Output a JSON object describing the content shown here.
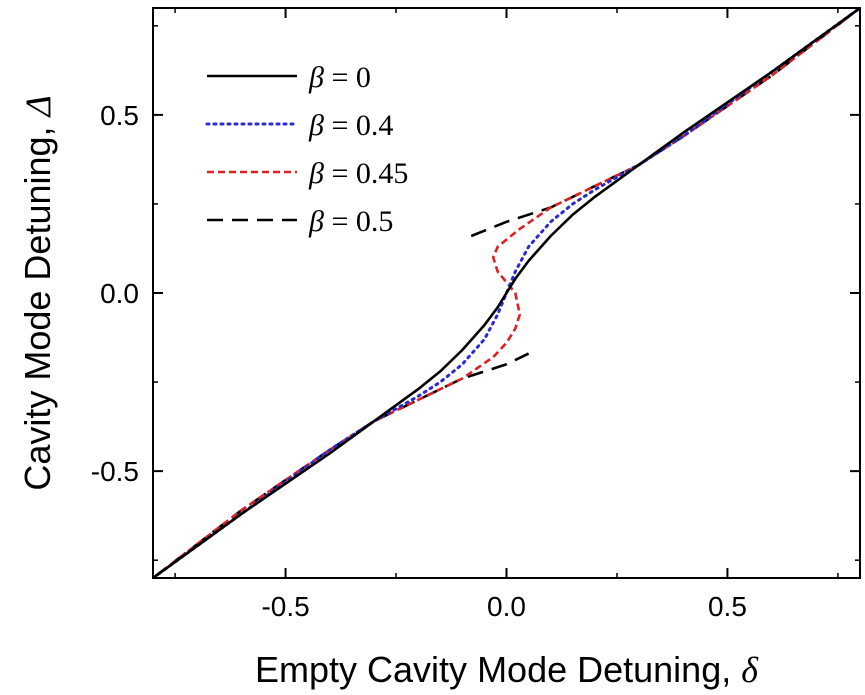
{
  "chart_data": {
    "type": "line",
    "xlabel": "Empty Cavity Mode Detuning, ",
    "xlabel_symbol": "δ",
    "ylabel": "Cavity Mode Detuning, ",
    "ylabel_symbol": "Δ",
    "xlim": [
      -0.8,
      0.8
    ],
    "ylim": [
      -0.8,
      0.8
    ],
    "xticks": [
      -0.5,
      0.0,
      0.5
    ],
    "yticks": [
      -0.5,
      0.0,
      0.5
    ],
    "xtick_labels": [
      "-0.5",
      "0.0",
      "0.5"
    ],
    "ytick_labels": [
      "-0.5",
      "0.0",
      "0.5"
    ],
    "grid": false,
    "legend_position": "top-left",
    "series": [
      {
        "name": "β = 0",
        "symbol": "β",
        "value_text": " = 0",
        "color": "#000000",
        "style": "solid",
        "x": [
          -0.8,
          -0.6,
          -0.4,
          -0.3,
          -0.2,
          -0.15,
          -0.1,
          -0.05,
          -0.02,
          0.0,
          0.02,
          0.05,
          0.1,
          0.15,
          0.2,
          0.3,
          0.4,
          0.6,
          0.8
        ],
        "y": [
          -0.8,
          -0.62,
          -0.45,
          -0.36,
          -0.27,
          -0.22,
          -0.16,
          -0.09,
          -0.04,
          0.0,
          0.04,
          0.09,
          0.16,
          0.22,
          0.27,
          0.36,
          0.45,
          0.62,
          0.8
        ]
      },
      {
        "name": "β = 0.4",
        "symbol": "β",
        "value_text": " = 0.4",
        "color": "#2b2bd6",
        "style": "dotted",
        "x": [
          -0.8,
          -0.6,
          -0.4,
          -0.3,
          -0.2,
          -0.15,
          -0.1,
          -0.05,
          -0.02,
          0.0,
          0.02,
          0.05,
          0.1,
          0.15,
          0.2,
          0.3,
          0.4,
          0.6,
          0.8
        ],
        "y": [
          -0.8,
          -0.62,
          -0.44,
          -0.36,
          -0.29,
          -0.25,
          -0.2,
          -0.13,
          -0.06,
          0.0,
          0.06,
          0.13,
          0.2,
          0.25,
          0.29,
          0.36,
          0.44,
          0.62,
          0.8
        ]
      },
      {
        "name": "β = 0.45",
        "symbol": "β",
        "value_text": " = 0.45",
        "color": "#e02020",
        "style": "dashed",
        "x": [
          -0.8,
          -0.6,
          -0.4,
          -0.3,
          -0.2,
          -0.1,
          -0.03,
          0.0,
          0.02,
          0.03,
          0.02,
          0.0,
          -0.02,
          -0.03,
          -0.02,
          0.0,
          0.03,
          0.1,
          0.2,
          0.3,
          0.4,
          0.6,
          0.8
        ],
        "y": [
          -0.8,
          -0.61,
          -0.44,
          -0.36,
          -0.3,
          -0.24,
          -0.18,
          -0.14,
          -0.1,
          -0.06,
          0.0,
          0.03,
          0.06,
          0.1,
          0.13,
          0.15,
          0.18,
          0.24,
          0.3,
          0.36,
          0.44,
          0.61,
          0.8
        ]
      },
      {
        "name": "β = 0.5",
        "symbol": "β",
        "value_text": " = 0.5",
        "color": "#000000",
        "style": "longdash",
        "x": [
          -0.8,
          -0.6,
          -0.4,
          -0.3,
          -0.2,
          -0.1,
          0.0,
          0.05
        ],
        "y": [
          -0.8,
          -0.61,
          -0.44,
          -0.36,
          -0.3,
          -0.24,
          -0.2,
          -0.17
        ],
        "x2": [
          -0.08,
          0.0,
          0.1,
          0.2,
          0.3,
          0.4,
          0.6,
          0.8
        ],
        "y2": [
          0.16,
          0.2,
          0.24,
          0.3,
          0.36,
          0.44,
          0.61,
          0.8
        ]
      }
    ]
  }
}
